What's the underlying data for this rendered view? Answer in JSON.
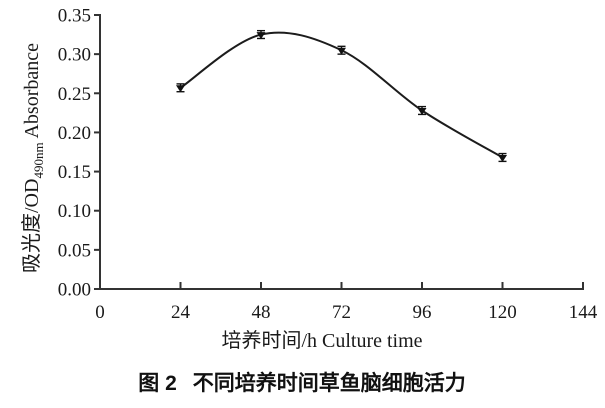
{
  "figure": {
    "caption_label": "图 2",
    "caption_text": "不同培养时间草鱼脑细胞活力"
  },
  "chart_data": {
    "type": "line",
    "x": [
      24,
      48,
      72,
      96,
      120
    ],
    "values": [
      0.257,
      0.325,
      0.305,
      0.228,
      0.168
    ],
    "error_bar": 0.005,
    "title": "图 2 不同培养时间草鱼脑细胞活力",
    "xlabel": "培养时间/h Culture time",
    "ylabel_prefix": "吸光度/OD",
    "ylabel_subscript": "490nm",
    "ylabel_suffix": " Absorbance",
    "xlim": [
      0,
      144
    ],
    "ylim": [
      0,
      0.35
    ],
    "x_ticks": [
      0,
      24,
      48,
      72,
      96,
      120,
      144
    ],
    "y_ticks": [
      0,
      0.05,
      0.1,
      0.15,
      0.2,
      0.25,
      0.3,
      0.35
    ],
    "grid": false,
    "legend_position": "none",
    "line_color": "#1c1c1c",
    "axis_color": "#333333",
    "marker": "triangle-down",
    "marker_color": "#111111"
  }
}
